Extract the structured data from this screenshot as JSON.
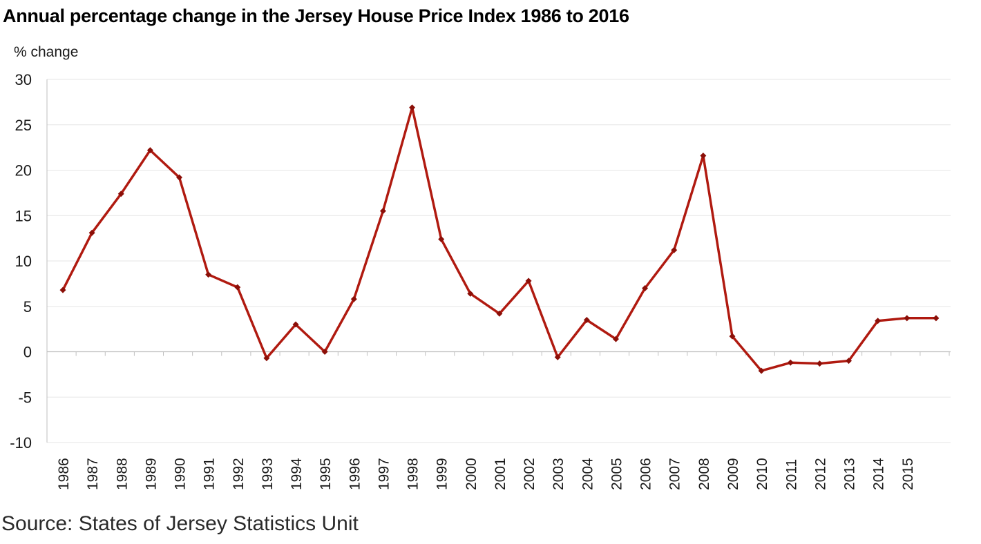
{
  "title": "Annual percentage change in the Jersey House Price Index 1986 to 2016",
  "source": "Source: States of Jersey Statistics Unit",
  "chart_data": {
    "type": "line",
    "ylabel": "% change",
    "xlabel": "",
    "ylim": [
      -10,
      30
    ],
    "yticks": [
      -10,
      -5,
      0,
      5,
      10,
      15,
      20,
      25,
      30
    ],
    "grid": true,
    "legend": "none",
    "categories": [
      "1986",
      "1987",
      "1988",
      "1989",
      "1990",
      "1991",
      "1992",
      "1993",
      "1994",
      "1995",
      "1996",
      "1997",
      "1998",
      "1999",
      "2000",
      "2001",
      "2002",
      "2003",
      "2004",
      "2005",
      "2006",
      "2007",
      "2008",
      "2009",
      "2010",
      "2011",
      "2012",
      "2013",
      "2014",
      "2015",
      ""
    ],
    "values": [
      6.8,
      13.1,
      17.4,
      22.2,
      19.2,
      8.5,
      7.1,
      -0.7,
      3.0,
      0.0,
      5.8,
      15.5,
      26.9,
      12.4,
      6.4,
      4.2,
      7.8,
      -0.6,
      3.5,
      1.4,
      7.0,
      11.2,
      21.6,
      1.7,
      -2.1,
      -1.2,
      -1.3,
      -1.0,
      3.4,
      3.7,
      3.7
    ],
    "colors": {
      "line": "#b01a10",
      "marker": "#8b0f08",
      "grid": "#e6e6e6",
      "axis": "#bfbfbf",
      "text": "#1a1a1a"
    }
  }
}
